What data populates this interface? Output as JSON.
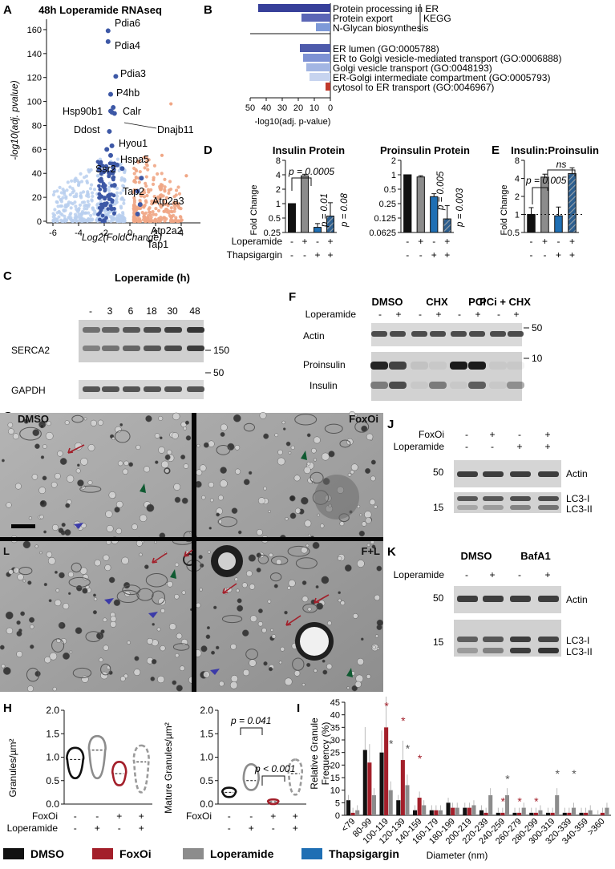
{
  "panels": {
    "A": {
      "letter": "A",
      "title": "48h Loperamide RNAseq",
      "xlabel": "Log2(FoldChange)",
      "ylabel": "-log10(adj. pvalue)",
      "xticks": [
        "-6",
        "-4",
        "-2",
        "0",
        "2",
        "4"
      ],
      "yticks": [
        "0",
        "20",
        "40",
        "60",
        "80",
        "100",
        "120",
        "140",
        "160"
      ],
      "colors": {
        "down": "#b9cfee",
        "up": "#f0a685",
        "highlight": "#3d58a6"
      },
      "gene_labels": [
        "Pdia6",
        "Pdia4",
        "Pdia3",
        "P4hb",
        "Calr",
        "Hsp90b1",
        "Ddost",
        "Dnajb11",
        "Hyou1",
        "Hspa5",
        "Ssr2",
        "Atp2a3",
        "Tap2",
        "Atp2a2",
        "Tap1"
      ]
    },
    "B": {
      "letter": "B",
      "xlabel": "-log10(adj. p-value)",
      "xticks": [
        "50",
        "40",
        "30",
        "20",
        "10",
        "0"
      ],
      "kegg_label": "KEGG",
      "terms": [
        {
          "label": "Protein processing in ER",
          "value": 45,
          "color": "#37409a"
        },
        {
          "label": "Protein export",
          "value": 18,
          "color": "#5b66b6"
        },
        {
          "label": "N-Glycan biosynthesis",
          "value": 9,
          "color": "#7e9ad8"
        },
        {
          "label": "ER lumen (GO:0005788)",
          "value": 19,
          "color": "#4d5aab"
        },
        {
          "label": "ER to Golgi vesicle-mediated transport (GO:0006888)",
          "value": 17,
          "color": "#7e92d4"
        },
        {
          "label": "Golgi vesicle transport (GO:0048193)",
          "value": 15,
          "color": "#a3b6e3"
        },
        {
          "label": "ER-Golgi intermediate compartment (GO:0005793)",
          "value": 13,
          "color": "#c7d4ef"
        },
        {
          "label": "cytosol to ER transport (GO:0046967)",
          "value": 3,
          "color": "#c0392b"
        }
      ]
    },
    "C": {
      "letter": "C",
      "header": "Loperamide (h)",
      "lanes": [
        "-",
        "3",
        "6",
        "18",
        "30",
        "48"
      ],
      "rows": [
        "SERCA2",
        "GAPDH"
      ],
      "markers": [
        "150",
        "50"
      ]
    },
    "D": {
      "letter": "D",
      "insulin_title": "Insulin Protein",
      "proinsulin_title": "Proinsulin Protein",
      "ylabel": "Fold Change",
      "insulin_yticks": [
        "8",
        "4",
        "2",
        "1",
        "0.5",
        "0.25"
      ],
      "proinsulin_yticks": [
        "2",
        "1",
        "0.5",
        "0.25",
        "0.125",
        "0.0625"
      ],
      "insulin_pvals": [
        "p = 0.0005",
        "p = 0.01",
        "p = 0.08"
      ],
      "proinsulin_pvals": [
        "p = 0.005",
        "p = 0.003"
      ],
      "insulin_values": [
        1.0,
        3.8,
        0.32,
        0.55
      ],
      "proinsulin_values": [
        1.0,
        0.9,
        0.35,
        0.12
      ],
      "row_labels": [
        "Loperamide",
        "Thapsigargin"
      ],
      "loperamide_signs": [
        "-",
        "+",
        "-",
        "+"
      ],
      "thapsigargin_signs": [
        "-",
        "-",
        "+",
        "+"
      ]
    },
    "E": {
      "letter": "E",
      "title": "Insulin:Proinsulin",
      "ylabel": "Fold Change",
      "yticks": [
        "8",
        "4",
        "2",
        "1",
        "0.5"
      ],
      "values": [
        1.0,
        4.2,
        0.95,
        4.8
      ],
      "pval": "p = 0.005",
      "ns": "ns"
    },
    "F": {
      "letter": "F",
      "groups": [
        "DMSO",
        "CHX",
        "PCi",
        "PCi + CHX"
      ],
      "row_label": "Loperamide",
      "signs": [
        "-",
        "+",
        "-",
        "+",
        "-",
        "+",
        "-",
        "+"
      ],
      "bands": [
        "Actin",
        "Proinsulin",
        "Insulin"
      ],
      "markers": [
        "50",
        "10"
      ]
    },
    "G": {
      "letter": "G",
      "quadrants": [
        "DMSO",
        "FoxOi",
        "L",
        "F+L"
      ]
    },
    "J": {
      "letter": "J",
      "row1": "FoxOi",
      "row2": "Loperamide",
      "row1_signs": [
        "-",
        "+",
        "-",
        "+"
      ],
      "row2_signs": [
        "-",
        "-",
        "+",
        "+"
      ],
      "bands": [
        "Actin",
        "LC3-I",
        "LC3-II"
      ],
      "markers": [
        "50",
        "15"
      ]
    },
    "K": {
      "letter": "K",
      "groups": [
        "DMSO",
        "BafA1"
      ],
      "row_label": "Loperamide",
      "signs": [
        "-",
        "+",
        "-",
        "+"
      ],
      "bands": [
        "Actin",
        "LC3-I",
        "LC3-II"
      ],
      "markers": [
        "50",
        "15"
      ]
    },
    "H": {
      "letter": "H",
      "left_ylabel": "Granules/µm²",
      "right_ylabel": "Mature Granules/µm²",
      "left_yticks": [
        "2.0",
        "1.5",
        "1.0",
        "0.5",
        "0.0"
      ],
      "right_yticks": [
        "2.0",
        "1.5",
        "1.0",
        "0.5",
        "0.0"
      ],
      "pvals": [
        "p = 0.041",
        "p < 0.001"
      ],
      "row_labels": [
        "FoxOi",
        "Loperamide"
      ],
      "foxoi_signs": [
        "-",
        "-",
        "+",
        "+"
      ],
      "loperamide_signs": [
        "-",
        "+",
        "-",
        "+"
      ]
    },
    "I": {
      "letter": "I",
      "ylabel": "Relative Granule Frequency (%)",
      "xlabel": "Diameter (nm)",
      "yticks": [
        "45",
        "40",
        "35",
        "30",
        "25",
        "20",
        "15",
        "10",
        "5",
        "0"
      ]
    },
    "legend": [
      {
        "label": "DMSO",
        "color": "#111111"
      },
      {
        "label": "FoxOi",
        "color": "#a31f2a"
      },
      {
        "label": "Loperamide",
        "color": "#8c8c8c"
      },
      {
        "label": "Thapsigargin",
        "color": "#1f6fb4"
      }
    ]
  },
  "chart_data": [
    {
      "type": "bar",
      "title": "Relative Granule Frequency",
      "xlabel": "Diameter (nm)",
      "ylabel": "Relative Granule Frequency (%)",
      "ylim": [
        0,
        45
      ],
      "categories": [
        "<79",
        "80-99",
        "100-119",
        "120-139",
        "140-159",
        "160-179",
        "180-199",
        "200-219",
        "220-239",
        "240-259",
        "260-279",
        "280-299",
        "300-319",
        "320-339",
        "340-359",
        ">360"
      ],
      "series": [
        {
          "name": "DMSO",
          "values": [
            6,
            26,
            25,
            6,
            2,
            2,
            5,
            3,
            2,
            1,
            1,
            1,
            1,
            1,
            1,
            0
          ]
        },
        {
          "name": "FoxOi",
          "values": [
            1,
            21,
            35,
            22,
            7,
            2,
            3,
            3,
            1,
            1,
            1,
            1,
            1,
            1,
            1,
            1
          ]
        },
        {
          "name": "Loperamide",
          "values": [
            2,
            8,
            10,
            12,
            4,
            2,
            3,
            4,
            8,
            8,
            3,
            2,
            8,
            3,
            2,
            3
          ]
        }
      ]
    }
  ]
}
